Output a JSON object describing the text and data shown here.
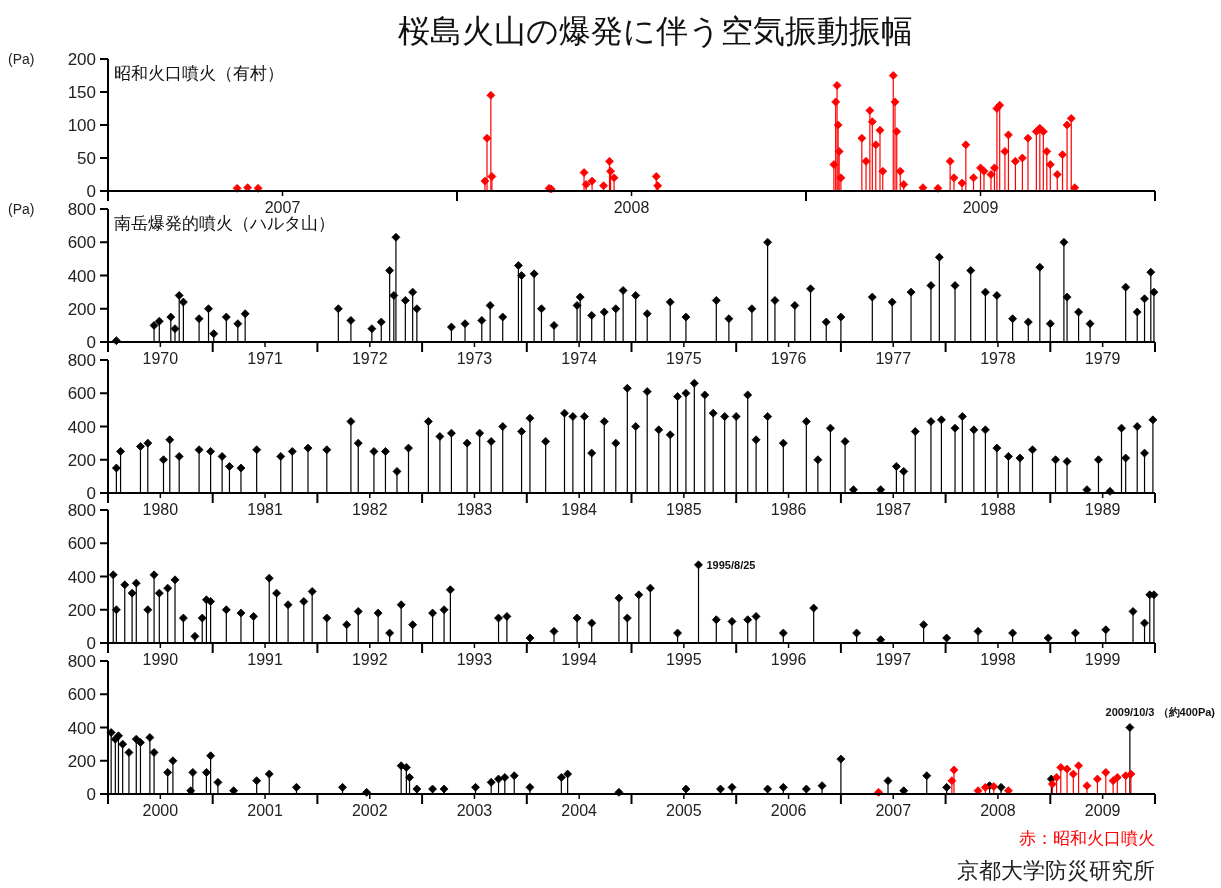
{
  "chart_data": [
    {
      "type": "lollipop",
      "title": "桜島火山の爆発に伴う空気振動振幅",
      "subtitle": "昭和火口噴火（有村）",
      "ylabel": "(Pa)",
      "marker": "diamond",
      "xlim": [
        2007,
        2010
      ],
      "ylim": [
        0,
        200
      ],
      "yticks": [
        0,
        50,
        100,
        150,
        200
      ],
      "xticks": [
        {
          "value": 2007,
          "label": null
        },
        {
          "value": 2007.5,
          "label": "2007"
        },
        {
          "value": 2008,
          "label": null
        },
        {
          "value": 2008.5,
          "label": "2008"
        },
        {
          "value": 2009,
          "label": null
        },
        {
          "value": 2009.5,
          "label": "2009"
        },
        {
          "value": 2010,
          "label": null
        }
      ],
      "series": [
        {
          "color": "#ff0000",
          "x": [
            2007.37,
            2007.4,
            2007.43,
            2008.08,
            2008.086,
            2008.097,
            2008.1,
            2008.264,
            2008.27,
            2008.364,
            2008.37,
            2008.387,
            2008.42,
            2008.437,
            2008.44,
            2008.45,
            2008.571,
            2008.575,
            2009.08,
            2009.085,
            2009.089,
            2009.092,
            2009.095,
            2009.1,
            2009.16,
            2009.172,
            2009.183,
            2009.19,
            2009.2,
            2009.212,
            2009.22,
            2009.25,
            2009.255,
            2009.26,
            2009.27,
            2009.28,
            2009.335,
            2009.378,
            2009.413,
            2009.424,
            2009.447,
            2009.458,
            2009.48,
            2009.5,
            2009.51,
            2009.53,
            2009.54,
            2009.547,
            2009.555,
            2009.57,
            2009.58,
            2009.6,
            2009.62,
            2009.636,
            2009.66,
            2009.67,
            2009.68,
            2009.69,
            2009.7,
            2009.72,
            2009.735,
            2009.748,
            2009.76,
            2009.77
          ],
          "values": [
            4,
            5,
            4,
            15,
            80,
            145,
            22,
            4,
            3,
            28,
            10,
            15,
            8,
            45,
            30,
            20,
            22,
            8,
            40,
            135,
            160,
            100,
            60,
            20,
            80,
            45,
            122,
            105,
            70,
            92,
            30,
            175,
            135,
            90,
            30,
            10,
            5,
            4,
            45,
            20,
            12,
            70,
            20,
            35,
            30,
            25,
            35,
            125,
            130,
            60,
            85,
            45,
            50,
            80,
            90,
            95,
            90,
            60,
            40,
            25,
            55,
            100,
            110,
            5
          ]
        }
      ]
    },
    {
      "type": "lollipop",
      "subtitle": "南岳爆発的噴火（ハルタ山）",
      "ylabel": "(Pa)",
      "marker": "diamond",
      "xlim": [
        1970,
        1980
      ],
      "ylim": [
        0,
        800
      ],
      "yticks": [
        0,
        200,
        400,
        600,
        800
      ],
      "xticks": [
        {
          "value": 1970,
          "label": null
        },
        {
          "value": 1970.5,
          "label": "1970"
        },
        {
          "value": 1971,
          "label": null
        },
        {
          "value": 1971.5,
          "label": "1971"
        },
        {
          "value": 1972,
          "label": null
        },
        {
          "value": 1972.5,
          "label": "1972"
        },
        {
          "value": 1973,
          "label": null
        },
        {
          "value": 1973.5,
          "label": "1973"
        },
        {
          "value": 1974,
          "label": null
        },
        {
          "value": 1974.5,
          "label": "1974"
        },
        {
          "value": 1975,
          "label": null
        },
        {
          "value": 1975.5,
          "label": "1975"
        },
        {
          "value": 1976,
          "label": null
        },
        {
          "value": 1976.5,
          "label": "1976"
        },
        {
          "value": 1977,
          "label": null
        },
        {
          "value": 1977.5,
          "label": "1977"
        },
        {
          "value": 1978,
          "label": null
        },
        {
          "value": 1978.5,
          "label": "1978"
        },
        {
          "value": 1979,
          "label": null
        },
        {
          "value": 1979.5,
          "label": "1979"
        },
        {
          "value": 1980,
          "label": null
        }
      ],
      "series": [
        {
          "color": "#000000",
          "x": [
            1970.08,
            1970.44,
            1970.49,
            1970.6,
            1970.64,
            1970.68,
            1970.72,
            1970.87,
            1970.96,
            1971.01,
            1971.13,
            1971.24,
            1971.31,
            1972.2,
            1972.32,
            1972.52,
            1972.61,
            1972.69,
            1972.73,
            1972.75,
            1972.84,
            1972.91,
            1972.95,
            1973.28,
            1973.41,
            1973.57,
            1973.65,
            1973.77,
            1973.92,
            1973.95,
            1974.07,
            1974.14,
            1974.26,
            1974.48,
            1974.51,
            1974.62,
            1974.74,
            1974.85,
            1974.92,
            1975.04,
            1975.15,
            1975.37,
            1975.52,
            1975.81,
            1975.93,
            1976.15,
            1976.3,
            1976.37,
            1976.56,
            1976.71,
            1976.86,
            1977.0,
            1977.3,
            1977.49,
            1977.67,
            1977.86,
            1977.94,
            1978.09,
            1978.24,
            1978.38,
            1978.49,
            1978.64,
            1978.79,
            1978.9,
            1979.0,
            1979.13,
            1979.16,
            1979.27,
            1979.38,
            1979.72,
            1979.83,
            1979.9,
            1979.96,
            1979.99
          ],
          "values": [
            8,
            100,
            125,
            150,
            80,
            280,
            240,
            140,
            200,
            50,
            150,
            110,
            170,
            200,
            130,
            80,
            120,
            430,
            280,
            630,
            250,
            300,
            200,
            90,
            110,
            130,
            220,
            150,
            460,
            400,
            410,
            200,
            100,
            220,
            270,
            160,
            180,
            200,
            310,
            280,
            170,
            240,
            150,
            250,
            140,
            200,
            600,
            250,
            220,
            320,
            120,
            150,
            270,
            240,
            300,
            340,
            510,
            340,
            430,
            300,
            280,
            140,
            120,
            450,
            110,
            600,
            270,
            180,
            110,
            330,
            180,
            260,
            420,
            300
          ]
        }
      ]
    },
    {
      "type": "lollipop",
      "marker": "diamond",
      "xlim": [
        1980,
        1990
      ],
      "ylim": [
        0,
        800
      ],
      "yticks": [
        0,
        200,
        400,
        600,
        800
      ],
      "xticks": [
        {
          "value": 1980,
          "label": null
        },
        {
          "value": 1980.5,
          "label": "1980"
        },
        {
          "value": 1981,
          "label": null
        },
        {
          "value": 1981.5,
          "label": "1981"
        },
        {
          "value": 1982,
          "label": null
        },
        {
          "value": 1982.5,
          "label": "1982"
        },
        {
          "value": 1983,
          "label": null
        },
        {
          "value": 1983.5,
          "label": "1983"
        },
        {
          "value": 1984,
          "label": null
        },
        {
          "value": 1984.5,
          "label": "1984"
        },
        {
          "value": 1985,
          "label": null
        },
        {
          "value": 1985.5,
          "label": "1985"
        },
        {
          "value": 1986,
          "label": null
        },
        {
          "value": 1986.5,
          "label": "1986"
        },
        {
          "value": 1987,
          "label": null
        },
        {
          "value": 1987.5,
          "label": "1987"
        },
        {
          "value": 1988,
          "label": null
        },
        {
          "value": 1988.5,
          "label": "1988"
        },
        {
          "value": 1989,
          "label": null
        },
        {
          "value": 1989.5,
          "label": "1989"
        },
        {
          "value": 1990,
          "label": null
        }
      ],
      "series": [
        {
          "color": "#000000",
          "x": [
            1980.08,
            1980.12,
            1980.31,
            1980.38,
            1980.53,
            1980.59,
            1980.68,
            1980.87,
            1980.98,
            1981.09,
            1981.16,
            1981.27,
            1981.42,
            1981.65,
            1981.76,
            1981.91,
            1982.09,
            1982.32,
            1982.39,
            1982.54,
            1982.65,
            1982.76,
            1982.87,
            1983.06,
            1983.17,
            1983.28,
            1983.43,
            1983.55,
            1983.66,
            1983.77,
            1983.95,
            1984.03,
            1984.18,
            1984.36,
            1984.44,
            1984.55,
            1984.62,
            1984.74,
            1984.85,
            1984.96,
            1985.04,
            1985.15,
            1985.26,
            1985.37,
            1985.44,
            1985.52,
            1985.6,
            1985.7,
            1985.78,
            1985.89,
            1986.0,
            1986.11,
            1986.19,
            1986.3,
            1986.45,
            1986.67,
            1986.78,
            1986.9,
            1987.04,
            1987.12,
            1987.38,
            1987.53,
            1987.6,
            1987.71,
            1987.86,
            1987.96,
            1988.09,
            1988.16,
            1988.27,
            1988.38,
            1988.49,
            1988.6,
            1988.71,
            1988.83,
            1989.05,
            1989.16,
            1989.35,
            1989.46,
            1989.57,
            1989.68,
            1989.72,
            1989.83,
            1989.9,
            1989.98
          ],
          "values": [
            150,
            250,
            280,
            300,
            200,
            320,
            220,
            260,
            250,
            220,
            160,
            150,
            260,
            220,
            250,
            270,
            260,
            430,
            300,
            250,
            250,
            130,
            270,
            430,
            340,
            360,
            300,
            360,
            310,
            400,
            370,
            450,
            310,
            480,
            460,
            460,
            240,
            430,
            300,
            630,
            400,
            610,
            380,
            350,
            580,
            600,
            660,
            590,
            480,
            460,
            460,
            590,
            320,
            460,
            300,
            430,
            200,
            390,
            310,
            20,
            20,
            160,
            130,
            370,
            430,
            440,
            390,
            460,
            380,
            380,
            270,
            220,
            210,
            260,
            200,
            190,
            20,
            200,
            10,
            390,
            210,
            400,
            240,
            440
          ]
        }
      ]
    },
    {
      "type": "lollipop",
      "marker": "diamond",
      "xlim": [
        1990,
        2000
      ],
      "ylim": [
        0,
        800
      ],
      "yticks": [
        0,
        200,
        400,
        600,
        800
      ],
      "xticks": [
        {
          "value": 1990,
          "label": null
        },
        {
          "value": 1990.5,
          "label": "1990"
        },
        {
          "value": 1991,
          "label": null
        },
        {
          "value": 1991.5,
          "label": "1991"
        },
        {
          "value": 1992,
          "label": null
        },
        {
          "value": 1992.5,
          "label": "1992"
        },
        {
          "value": 1993,
          "label": null
        },
        {
          "value": 1993.5,
          "label": "1993"
        },
        {
          "value": 1994,
          "label": null
        },
        {
          "value": 1994.5,
          "label": "1994"
        },
        {
          "value": 1995,
          "label": null
        },
        {
          "value": 1995.5,
          "label": "1995"
        },
        {
          "value": 1996,
          "label": null
        },
        {
          "value": 1996.5,
          "label": "1996"
        },
        {
          "value": 1997,
          "label": null
        },
        {
          "value": 1997.5,
          "label": "1997"
        },
        {
          "value": 1998,
          "label": null
        },
        {
          "value": 1998.5,
          "label": "1998"
        },
        {
          "value": 1999,
          "label": null
        },
        {
          "value": 1999.5,
          "label": "1999"
        },
        {
          "value": 2000,
          "label": null
        }
      ],
      "annotations": [
        {
          "text": "1995/8/25",
          "x": 1995.64,
          "y": 470
        }
      ],
      "series": [
        {
          "color": "#000000",
          "x": [
            1990.05,
            1990.08,
            1990.16,
            1990.23,
            1990.27,
            1990.38,
            1990.44,
            1990.49,
            1990.57,
            1990.64,
            1990.72,
            1990.83,
            1990.9,
            1990.94,
            1990.98,
            1991.13,
            1991.27,
            1991.39,
            1991.54,
            1991.61,
            1991.72,
            1991.87,
            1991.95,
            1992.09,
            1992.28,
            1992.39,
            1992.58,
            1992.69,
            1992.8,
            1992.91,
            1993.1,
            1993.21,
            1993.27,
            1993.73,
            1993.81,
            1994.03,
            1994.26,
            1994.48,
            1994.62,
            1994.88,
            1994.96,
            1995.07,
            1995.18,
            1995.44,
            1995.64,
            1995.81,
            1995.96,
            1996.11,
            1996.19,
            1996.45,
            1996.74,
            1997.15,
            1997.38,
            1997.79,
            1998.01,
            1998.31,
            1998.64,
            1998.98,
            1999.24,
            1999.53,
            1999.79,
            1999.9,
            1999.95,
            1999.99
          ],
          "values": [
            410,
            200,
            350,
            300,
            360,
            200,
            410,
            300,
            330,
            380,
            150,
            40,
            150,
            260,
            250,
            200,
            180,
            160,
            390,
            300,
            230,
            250,
            310,
            150,
            110,
            190,
            180,
            60,
            230,
            110,
            180,
            200,
            320,
            150,
            160,
            30,
            70,
            150,
            120,
            270,
            150,
            290,
            330,
            60,
            470,
            140,
            130,
            140,
            160,
            60,
            210,
            60,
            20,
            110,
            30,
            70,
            60,
            30,
            60,
            80,
            190,
            120,
            290,
            290
          ]
        }
      ]
    },
    {
      "type": "lollipop",
      "marker": "diamond",
      "xlim": [
        2000,
        2010
      ],
      "ylim": [
        0,
        800
      ],
      "yticks": [
        0,
        200,
        400,
        600,
        800
      ],
      "xticks": [
        {
          "value": 2000,
          "label": null
        },
        {
          "value": 2000.5,
          "label": "2000"
        },
        {
          "value": 2001,
          "label": null
        },
        {
          "value": 2001.5,
          "label": "2001"
        },
        {
          "value": 2002,
          "label": null
        },
        {
          "value": 2002.5,
          "label": "2002"
        },
        {
          "value": 2003,
          "label": null
        },
        {
          "value": 2003.5,
          "label": "2003"
        },
        {
          "value": 2004,
          "label": null
        },
        {
          "value": 2004.5,
          "label": "2004"
        },
        {
          "value": 2005,
          "label": null
        },
        {
          "value": 2005.5,
          "label": "2005"
        },
        {
          "value": 2006,
          "label": null
        },
        {
          "value": 2006.5,
          "label": "2006"
        },
        {
          "value": 2007,
          "label": null
        },
        {
          "value": 2007.5,
          "label": "2007"
        },
        {
          "value": 2008,
          "label": null
        },
        {
          "value": 2008.5,
          "label": "2008"
        },
        {
          "value": 2009,
          "label": null
        },
        {
          "value": 2009.5,
          "label": "2009"
        },
        {
          "value": 2010,
          "label": null
        }
      ],
      "annotations": [
        {
          "text": "2009/10/3 （約400Pa)",
          "x": 2009.76,
          "y": 400
        },
        "京都大学防災研究所"
      ],
      "series": [
        {
          "color": "#000000",
          "x": [
            2000.03,
            2000.07,
            2000.1,
            2000.14,
            2000.2,
            2000.27,
            2000.31,
            2000.4,
            2000.44,
            2000.57,
            2000.62,
            2000.79,
            2000.81,
            2000.94,
            2000.98,
            2001.05,
            2001.2,
            2001.42,
            2001.54,
            2001.8,
            2002.24,
            2002.47,
            2002.8,
            2002.85,
            2002.88,
            2002.95,
            2003.1,
            2003.21,
            2003.51,
            2003.66,
            2003.73,
            2003.79,
            2003.88,
            2004.03,
            2004.33,
            2004.39,
            2004.88,
            2005.52,
            2005.85,
            2005.96,
            2006.3,
            2006.45,
            2006.67,
            2006.82,
            2007.0,
            2007.45,
            2007.6,
            2007.82,
            2008.01,
            2008.42,
            2008.53,
            2009.01,
            2009.76
          ],
          "values": [
            370,
            330,
            350,
            300,
            250,
            330,
            310,
            340,
            250,
            130,
            200,
            20,
            130,
            130,
            230,
            70,
            20,
            80,
            120,
            40,
            40,
            10,
            170,
            160,
            100,
            30,
            30,
            30,
            40,
            70,
            90,
            100,
            110,
            40,
            100,
            120,
            10,
            30,
            30,
            40,
            30,
            40,
            30,
            50,
            210,
            80,
            20,
            110,
            40,
            50,
            40,
            90,
            400
          ]
        },
        {
          "name": "赤：昭和火口噴火",
          "color": "#ff0000",
          "x": [
            2007.36,
            2008.06,
            2008.08,
            2008.31,
            2008.38,
            2008.46,
            2008.6,
            2009.02,
            2009.06,
            2009.1,
            2009.16,
            2009.22,
            2009.27,
            2009.35,
            2009.45,
            2009.53,
            2009.6,
            2009.64,
            2009.72,
            2009.77
          ],
          "values": [
            10,
            80,
            145,
            20,
            40,
            45,
            20,
            60,
            100,
            160,
            150,
            120,
            170,
            50,
            90,
            130,
            80,
            100,
            110,
            120
          ]
        }
      ]
    }
  ]
}
